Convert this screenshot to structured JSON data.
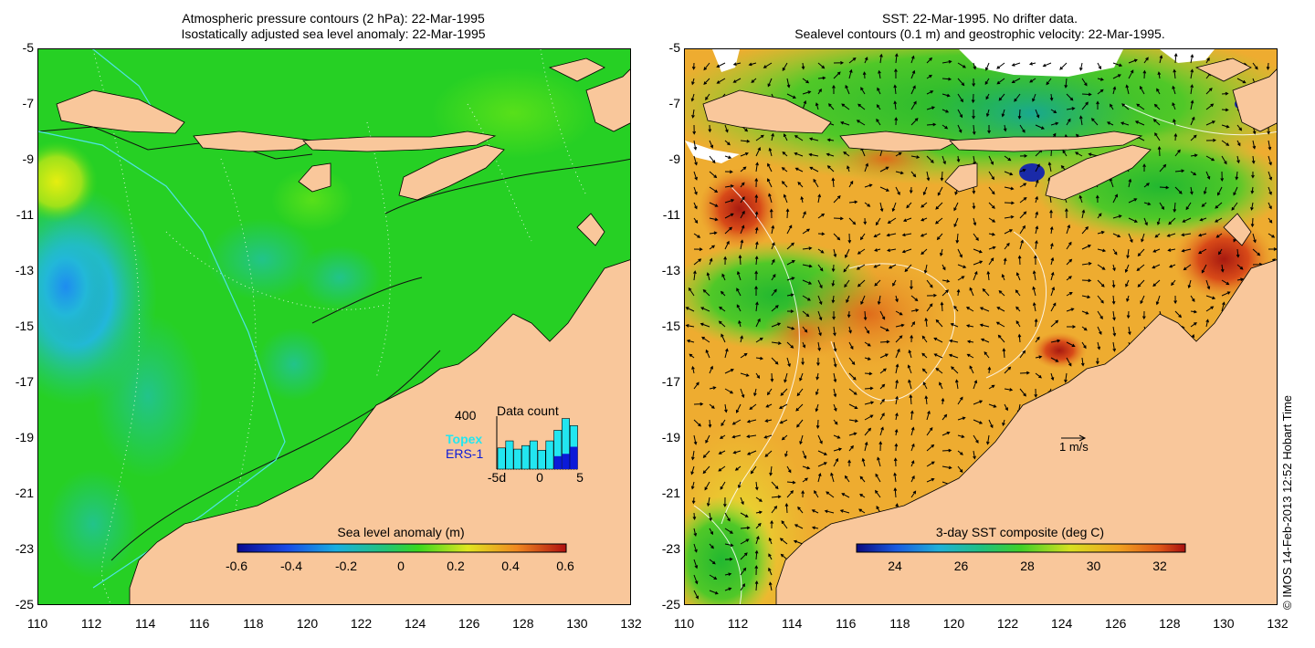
{
  "left_panel": {
    "title_line1": "Atmospheric pressure contours (2 hPa): 22-Mar-1995",
    "title_line2": "Isostatically adjusted sea level anomaly: 22-Mar-1995",
    "colorbar": {
      "title": "Sea level anomaly (m)",
      "ticks": [
        "-0.6",
        "-0.4",
        "-0.2",
        "0",
        "0.2",
        "0.4",
        "0.6"
      ]
    },
    "data_count": {
      "title": "Data count",
      "max_label": "400",
      "topex_label": "Topex",
      "ers_label": "ERS-1",
      "x_ticks": [
        "-5d",
        "0",
        "5"
      ],
      "topex_color": "#22e6f0",
      "ers_color": "#0b1ad8",
      "topex_counts": [
        180,
        240,
        170,
        200,
        240,
        160,
        240,
        330,
        430,
        370
      ],
      "ers_counts": [
        0,
        0,
        0,
        0,
        0,
        0,
        0,
        110,
        130,
        190
      ]
    }
  },
  "right_panel": {
    "title_line1": "SST: 22-Mar-1995. No drifter data.",
    "title_line2": "Sealevel contours (0.1 m) and geostrophic velocity: 22-Mar-1995.",
    "colorbar": {
      "title": "3-day SST composite (deg C)",
      "ticks": [
        "24",
        "26",
        "28",
        "30",
        "32"
      ]
    },
    "velocity_scale_label": "1 m/s"
  },
  "axes": {
    "y_ticks": [
      "-5",
      "-7",
      "-9",
      "-11",
      "-13",
      "-15",
      "-17",
      "-19",
      "-21",
      "-23",
      "-25"
    ],
    "x_ticks": [
      "110",
      "112",
      "114",
      "116",
      "118",
      "120",
      "122",
      "124",
      "126",
      "128",
      "130",
      "132"
    ]
  },
  "credit": "© IMOS 14-Feb-2013 12:52 Hobart Time",
  "colors": {
    "land": "#f9c79b",
    "ocean_base": "#1fcf1f",
    "sst_base": "#f0b43a"
  }
}
